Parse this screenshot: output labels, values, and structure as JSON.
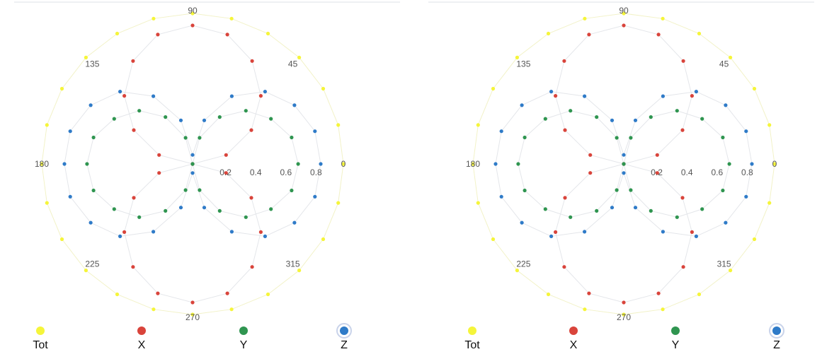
{
  "chart_data": [
    {
      "type": "scatter",
      "subtype": "polar",
      "angular_ticks": [
        "0",
        "45",
        "90",
        "135",
        "180",
        "225",
        "270",
        "315"
      ],
      "radial_ticks": [
        "0.2",
        "0.4",
        "0.6",
        "0.8"
      ],
      "rlim": [
        0,
        1
      ],
      "grid": false,
      "legend_position": "bottom",
      "series": [
        {
          "name": "Tot",
          "color": "#f5f53a",
          "theta": [
            0,
            15,
            30,
            45,
            60,
            75,
            90,
            105,
            120,
            135,
            150,
            165,
            180,
            195,
            210,
            225,
            240,
            255,
            270,
            285,
            300,
            315,
            330,
            345
          ],
          "r": [
            1,
            1,
            1,
            1,
            1,
            1,
            1,
            1,
            1,
            1,
            1,
            1,
            1,
            1,
            1,
            1,
            1,
            1,
            1,
            1,
            1,
            1,
            1,
            1
          ]
        },
        {
          "name": "X",
          "color": "#d9443b",
          "theta": [
            0,
            15,
            30,
            45,
            60,
            75,
            90,
            105,
            120,
            135,
            150,
            165,
            180,
            195,
            210,
            225,
            240,
            255,
            270,
            285,
            300,
            315,
            330,
            345
          ],
          "r": [
            0,
            0.23,
            0.45,
            0.64,
            0.79,
            0.89,
            0.92,
            0.89,
            0.79,
            0.64,
            0.45,
            0.23,
            0,
            0.23,
            0.45,
            0.64,
            0.79,
            0.89,
            0.92,
            0.89,
            0.79,
            0.64,
            0.45,
            0.23
          ]
        },
        {
          "name": "Y",
          "color": "#2f9550",
          "theta": [
            0,
            15,
            30,
            45,
            60,
            75,
            90,
            105,
            120,
            135,
            150,
            165,
            180,
            195,
            210,
            225,
            240,
            255,
            270,
            285,
            300,
            315,
            330,
            345
          ],
          "r": [
            0.7,
            0.68,
            0.6,
            0.5,
            0.36,
            0.18,
            0,
            0.18,
            0.36,
            0.5,
            0.6,
            0.68,
            0.7,
            0.68,
            0.6,
            0.5,
            0.36,
            0.18,
            0,
            0.18,
            0.36,
            0.5,
            0.6,
            0.68
          ]
        },
        {
          "name": "Z",
          "color": "#2f7bc8",
          "theta": [
            0,
            15,
            30,
            45,
            60,
            75,
            90,
            105,
            120,
            135,
            150,
            165,
            180,
            195,
            210,
            225,
            240,
            255,
            270,
            285,
            300,
            315,
            330,
            345
          ],
          "r": [
            0.85,
            0.84,
            0.78,
            0.68,
            0.52,
            0.3,
            0.06,
            0.3,
            0.52,
            0.68,
            0.78,
            0.84,
            0.85,
            0.84,
            0.78,
            0.68,
            0.52,
            0.3,
            0.06,
            0.3,
            0.52,
            0.68,
            0.78,
            0.84
          ]
        }
      ],
      "selected_legend": "Z"
    },
    {
      "type": "scatter",
      "subtype": "polar",
      "angular_ticks": [
        "0",
        "45",
        "90",
        "135",
        "180",
        "225",
        "270",
        "315"
      ],
      "radial_ticks": [
        "0.2",
        "0.4",
        "0.6",
        "0.8"
      ],
      "rlim": [
        0,
        1
      ],
      "grid": false,
      "legend_position": "bottom",
      "series": [
        {
          "name": "Tot",
          "color": "#f5f53a",
          "theta": [
            0,
            15,
            30,
            45,
            60,
            75,
            90,
            105,
            120,
            135,
            150,
            165,
            180,
            195,
            210,
            225,
            240,
            255,
            270,
            285,
            300,
            315,
            330,
            345
          ],
          "r": [
            1,
            1,
            1,
            1,
            1,
            1,
            1,
            1,
            1,
            1,
            1,
            1,
            1,
            1,
            1,
            1,
            1,
            1,
            1,
            1,
            1,
            1,
            1,
            1
          ]
        },
        {
          "name": "X",
          "color": "#d9443b",
          "theta": [
            0,
            15,
            30,
            45,
            60,
            75,
            90,
            105,
            120,
            135,
            150,
            165,
            180,
            195,
            210,
            225,
            240,
            255,
            270,
            285,
            300,
            315,
            330,
            345
          ],
          "r": [
            0,
            0.23,
            0.45,
            0.64,
            0.79,
            0.89,
            0.92,
            0.89,
            0.79,
            0.64,
            0.45,
            0.23,
            0,
            0.23,
            0.45,
            0.64,
            0.79,
            0.89,
            0.92,
            0.89,
            0.79,
            0.64,
            0.45,
            0.23
          ]
        },
        {
          "name": "Y",
          "color": "#2f9550",
          "theta": [
            0,
            15,
            30,
            45,
            60,
            75,
            90,
            105,
            120,
            135,
            150,
            165,
            180,
            195,
            210,
            225,
            240,
            255,
            270,
            285,
            300,
            315,
            330,
            345
          ],
          "r": [
            0.7,
            0.68,
            0.6,
            0.5,
            0.36,
            0.18,
            0,
            0.18,
            0.36,
            0.5,
            0.6,
            0.68,
            0.7,
            0.68,
            0.6,
            0.5,
            0.36,
            0.18,
            0,
            0.18,
            0.36,
            0.5,
            0.6,
            0.68
          ]
        },
        {
          "name": "Z",
          "color": "#2f7bc8",
          "theta": [
            0,
            15,
            30,
            45,
            60,
            75,
            90,
            105,
            120,
            135,
            150,
            165,
            180,
            195,
            210,
            225,
            240,
            255,
            270,
            285,
            300,
            315,
            330,
            345
          ],
          "r": [
            0.85,
            0.84,
            0.78,
            0.68,
            0.52,
            0.3,
            0.06,
            0.3,
            0.52,
            0.68,
            0.78,
            0.84,
            0.85,
            0.84,
            0.78,
            0.68,
            0.52,
            0.3,
            0.06,
            0.3,
            0.52,
            0.68,
            0.78,
            0.84
          ]
        }
      ],
      "selected_legend": "Z"
    }
  ]
}
